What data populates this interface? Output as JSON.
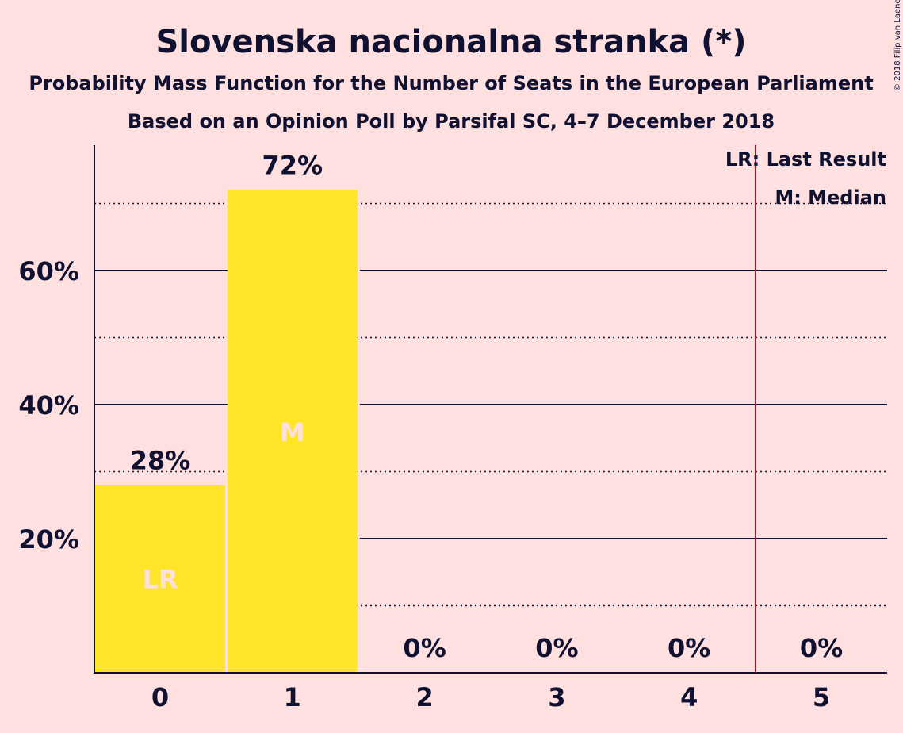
{
  "title": "Slovenska nacionalna stranka (*)",
  "subtitle": "Probability Mass Function for the Number of Seats in the European Parliament",
  "subtitle2": "Based on an Opinion Poll by Parsifal SC, 4–7 December 2018",
  "copyright": "© 2018 Filip van Laenen",
  "legend": {
    "last_result": "LR: Last Result",
    "median": "M: Median"
  },
  "colors": {
    "background": "#FFE0E1",
    "bar": "#FFE52A",
    "text": "#101030",
    "last_result_line": "#E0001C",
    "inbar_text": "#FFE0E1"
  },
  "chart_data": {
    "type": "bar",
    "categories": [
      "0",
      "1",
      "2",
      "3",
      "4",
      "5"
    ],
    "values": [
      28,
      72,
      0,
      0,
      0,
      0
    ],
    "value_labels": [
      "28%",
      "72%",
      "0%",
      "0%",
      "0%",
      "0%"
    ],
    "bar_markers": [
      "LR",
      "M",
      "",
      "",
      "",
      ""
    ],
    "ylim": [
      0,
      75
    ],
    "y_ticks": [
      20,
      40,
      60
    ],
    "y_tick_labels": [
      "20%",
      "40%",
      "60%"
    ],
    "minor_gridlines": [
      10,
      30,
      50,
      70
    ],
    "last_result_line_after": "4"
  }
}
